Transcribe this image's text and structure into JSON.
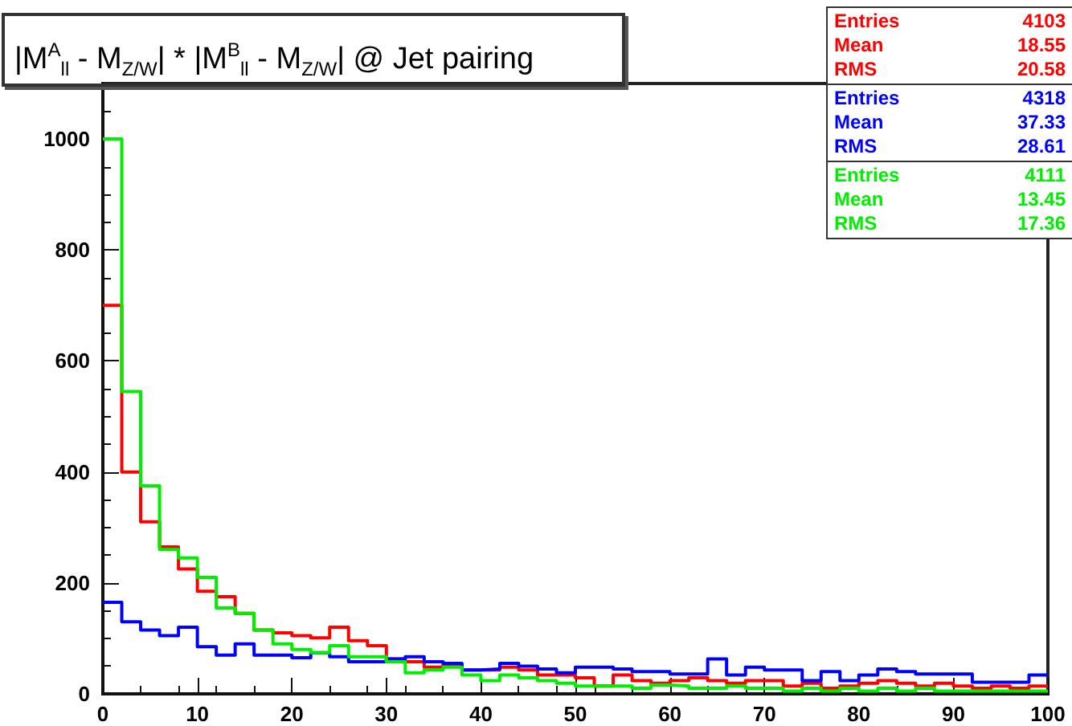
{
  "chart_data": {
    "type": "histogram",
    "title": "|M$^{A}$$_{ll}$ - M$_{Z/W}$| * |M$^{B}$$_{ll}$ - M$_{Z/W}$| @ Jet pairing",
    "bins": [
      0,
      2,
      4,
      6,
      8,
      10,
      12,
      14,
      16,
      18,
      20,
      22,
      24,
      26,
      28,
      30,
      32,
      34,
      36,
      38,
      40,
      42,
      44,
      46,
      48,
      50,
      52,
      54,
      56,
      58,
      60,
      62,
      64,
      66,
      68,
      70,
      72,
      74,
      76,
      78,
      80,
      82,
      84,
      86,
      88,
      90,
      92,
      94,
      96,
      98,
      100
    ],
    "series": [
      {
        "color": "#ff0000",
        "values": [
          700,
          400,
          310,
          265,
          225,
          185,
          175,
          145,
          115,
          110,
          105,
          101,
          120,
          96,
          87,
          63,
          58,
          48,
          53,
          43,
          43,
          48,
          43,
          34,
          34,
          29,
          14,
          34,
          24,
          19,
          24,
          29,
          24,
          19,
          24,
          24,
          14,
          19,
          10,
          14,
          19,
          24,
          19,
          14,
          19,
          14,
          10,
          14,
          10,
          14
        ]
      },
      {
        "color": "#0000ff",
        "values": [
          165,
          130,
          115,
          105,
          120,
          85,
          70,
          90,
          70,
          70,
          65,
          74,
          67,
          58,
          58,
          63,
          67,
          58,
          55,
          43,
          45,
          55,
          50,
          45,
          38,
          48,
          48,
          45,
          40,
          40,
          36,
          36,
          63,
          34,
          48,
          43,
          43,
          24,
          40,
          24,
          34,
          45,
          40,
          36,
          36,
          36,
          21,
          21,
          21,
          34
        ]
      },
      {
        "color": "#00ee00",
        "values": [
          1000,
          545,
          375,
          260,
          245,
          210,
          155,
          145,
          115,
          90,
          80,
          74,
          87,
          67,
          67,
          58,
          38,
          43,
          48,
          34,
          24,
          34,
          29,
          24,
          19,
          14,
          14,
          14,
          10,
          16,
          14,
          10,
          10,
          14,
          10,
          10,
          5,
          10,
          5,
          10,
          5,
          10,
          5,
          10,
          5,
          5,
          5,
          5,
          5,
          5
        ]
      }
    ],
    "xlim": [
      0,
      100
    ],
    "xticks": [
      0,
      10,
      20,
      30,
      40,
      50,
      60,
      70,
      80,
      90,
      100
    ],
    "ylim": [
      0,
      1100
    ],
    "yticks": [
      0,
      200,
      400,
      600,
      800,
      1000
    ],
    "grid": false,
    "annotations": [
      "Entries 4103",
      "Mean 18.55",
      "RMS 20.58",
      "Entries 4318",
      "Mean 37.33",
      "RMS 28.61",
      "Entries 4111",
      "Mean 13.45",
      "RMS 17.36"
    ]
  }
}
